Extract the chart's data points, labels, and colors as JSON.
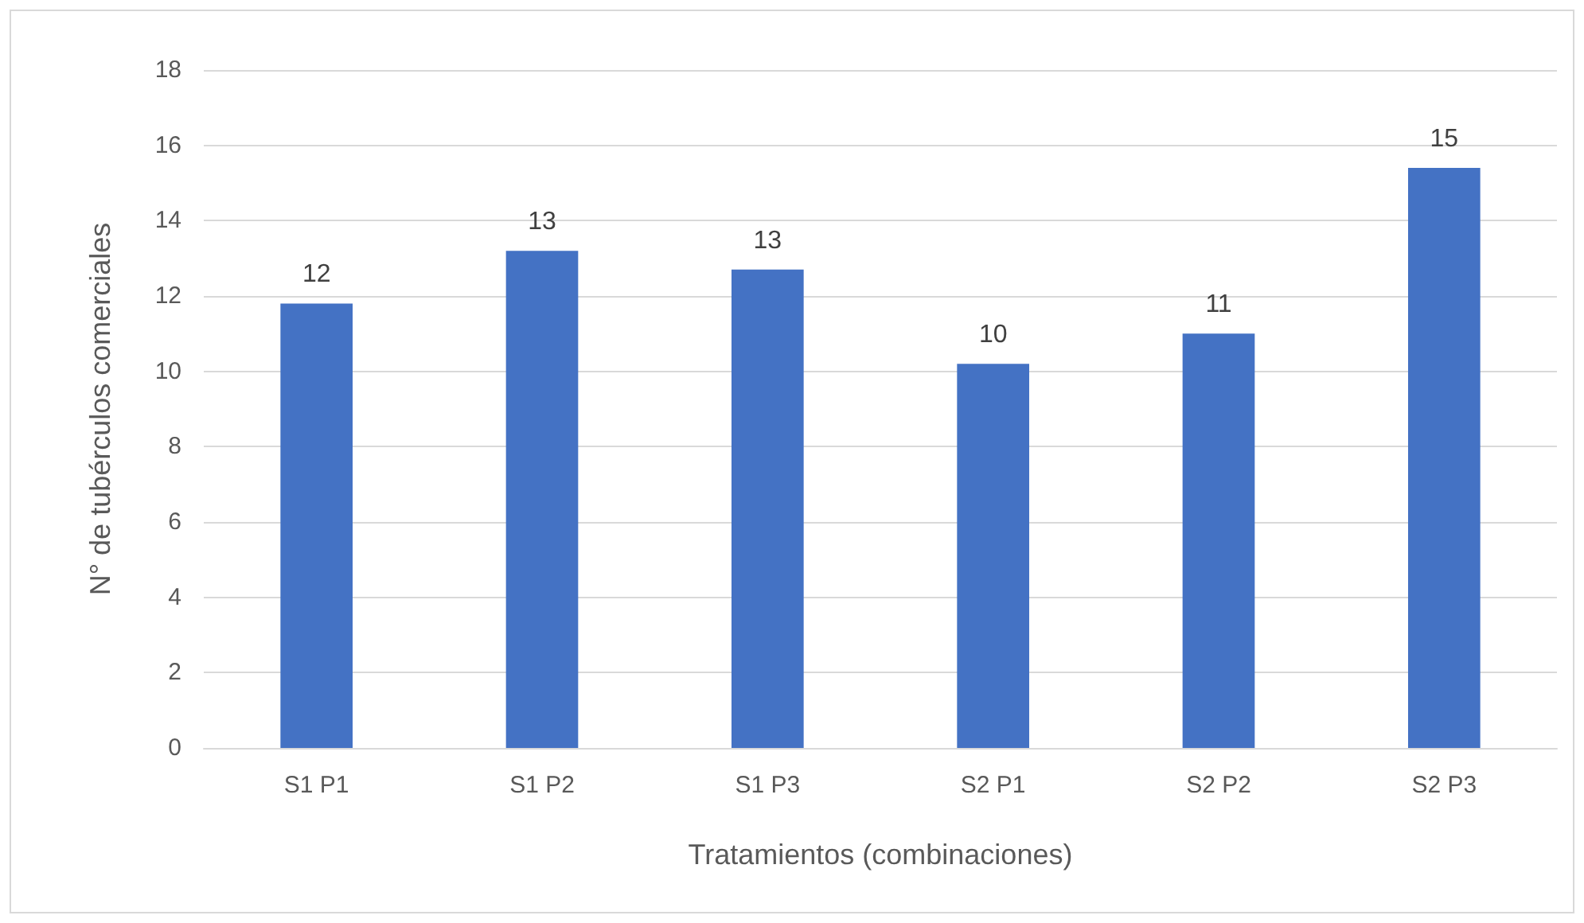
{
  "chart_data": {
    "type": "bar",
    "xlabel": "Tratamientos (combinaciones)",
    "ylabel": "N° de tubérculos comerciales",
    "categories": [
      "S1 P1",
      "S1 P2",
      "S1 P3",
      "S2 P1",
      "S2 P2",
      "S2 P3"
    ],
    "values": [
      11.8,
      13.2,
      12.7,
      10.2,
      11.0,
      15.4
    ],
    "value_labels": [
      "12",
      "13",
      "13",
      "10",
      "11",
      "15"
    ],
    "color": "#4472c4",
    "ylim": [
      0,
      18
    ],
    "yticks": [
      0,
      2,
      4,
      6,
      8,
      10,
      12,
      14,
      16,
      18
    ],
    "grid": "y"
  }
}
